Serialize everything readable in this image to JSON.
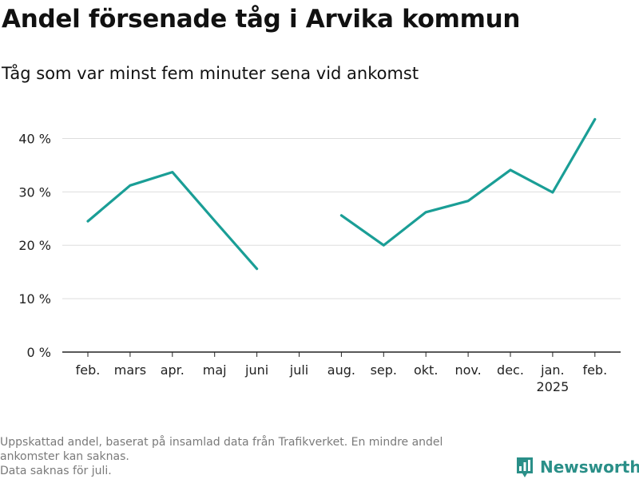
{
  "title": "Andel försenade tåg i Arvika kommun",
  "subtitle": "Tåg som var minst fem minuter sena vid ankomst",
  "footnote": {
    "line1": "Uppskattad andel, baserat på insamlad data från Trafikverket. En mindre andel",
    "line2": "ankomster kan saknas.",
    "line3": "Data saknas för juli."
  },
  "brand": {
    "name": "Newsworthy",
    "color": "#2a8f88"
  },
  "chart_data": {
    "type": "line",
    "categories": [
      "feb.",
      "mars",
      "apr.",
      "maj",
      "juni",
      "juli",
      "aug.",
      "sep.",
      "okt.",
      "nov.",
      "dec.",
      "jan.",
      "feb."
    ],
    "category_sublabels": [
      "",
      "",
      "",
      "",
      "",
      "",
      "",
      "",
      "",
      "",
      "",
      "2025",
      ""
    ],
    "series": [
      {
        "values": [
          24.5,
          31.2,
          33.7,
          24.6,
          15.6,
          null,
          25.6,
          20.0,
          26.2,
          28.3,
          34.1,
          29.9,
          43.6
        ],
        "color": "#1a9e96"
      }
    ],
    "ylim": [
      0,
      45
    ],
    "yticks": [
      0,
      10,
      20,
      30,
      40
    ],
    "ytick_labels": [
      "0 %",
      "10 %",
      "20 %",
      "30 %",
      "40 %"
    ],
    "xlabel": "",
    "ylabel": "",
    "grid": true,
    "legend": "none"
  }
}
